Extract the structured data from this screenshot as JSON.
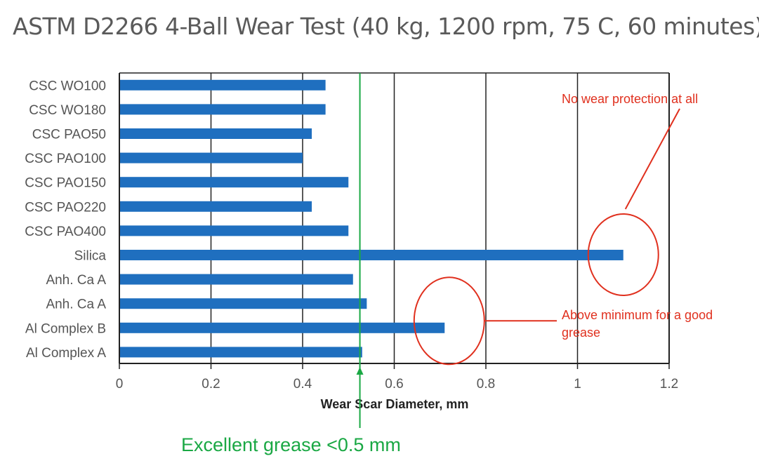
{
  "chart_data": {
    "type": "bar",
    "orientation": "horizontal",
    "title": "ASTM D2266 4-Ball Wear Test (40 kg, 1200 rpm, 75 C, 60 minutes)",
    "xlabel": "Wear Scar Diameter, mm",
    "ylabel": "",
    "xlim": [
      0,
      1.2
    ],
    "xticks": [
      "0",
      "0.2",
      "0.4",
      "0.6",
      "0.8",
      "1",
      "1.2"
    ],
    "grid": "vertical",
    "categories": [
      "CSC WO100",
      "CSC WO180",
      "CSC PAO50",
      "CSC PAO100",
      "CSC PAO150",
      "CSC PAO220",
      "CSC PAO400",
      "Silica",
      "Anh. Ca A",
      "Anh. Ca A",
      "Al Complex B",
      "Al Complex A"
    ],
    "values": [
      0.45,
      0.45,
      0.42,
      0.4,
      0.5,
      0.42,
      0.5,
      1.1,
      0.51,
      0.54,
      0.71,
      0.53
    ],
    "bar_color": "#1f6fbf",
    "reference_line": {
      "x": 0.525,
      "label": "Excellent grease <0.5 mm",
      "color": "#1aa844"
    },
    "annotations": [
      {
        "text_lines": [
          "No wear protection at all"
        ],
        "target": "Silica",
        "color": "#e0301e"
      },
      {
        "text_lines": [
          "Above minimum for a good",
          "grease"
        ],
        "target": "Al Complex B",
        "color": "#e0301e"
      }
    ]
  }
}
